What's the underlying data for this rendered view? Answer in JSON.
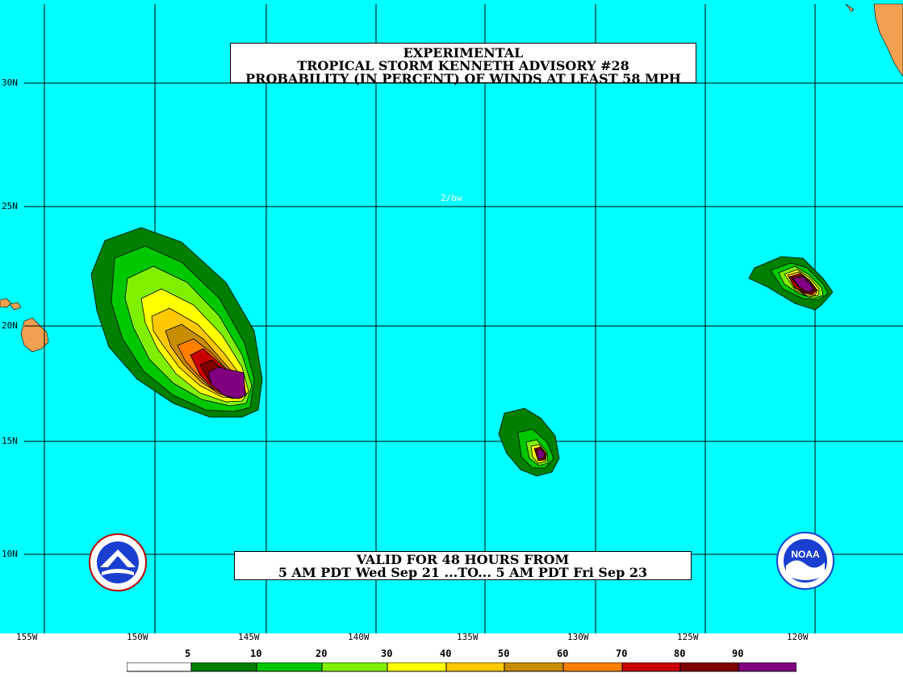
{
  "title": {
    "line1": "EXPERIMENTAL",
    "line2": "TROPICAL STORM KENNETH ADVISORY #28",
    "line3": "PROBABILITY (IN PERCENT) OF WINDS AT LEAST 58 MPH"
  },
  "valid": {
    "line1": "VALID FOR 48 HOURS FROM",
    "line2": "5 AM PDT Wed Sep 21 ...TO... 5 AM PDT Fri Sep 23"
  },
  "note": "2/bw",
  "latitudes": [
    "30N",
    "25N",
    "20N",
    "15N",
    "10N"
  ],
  "longitudes": [
    "155W",
    "150W",
    "145W",
    "140W",
    "135W",
    "130W",
    "125W",
    "120W"
  ],
  "legend": {
    "labels": [
      "5",
      "10",
      "20",
      "30",
      "40",
      "50",
      "60",
      "70",
      "80",
      "90"
    ],
    "colors": [
      "#ffffff",
      "#007f00",
      "#00c800",
      "#7ff000",
      "#ffff00",
      "#ffc800",
      "#c88c00",
      "#ff7f00",
      "#c80000",
      "#800000",
      "#800080"
    ]
  },
  "colors": {
    "ocean": "#00ffff",
    "land": "#f0a050",
    "grid": "#000000"
  },
  "logos": [
    "NWS-logo",
    "NOAA-logo"
  ],
  "logo_text": {
    "noaa": "NOAA"
  }
}
